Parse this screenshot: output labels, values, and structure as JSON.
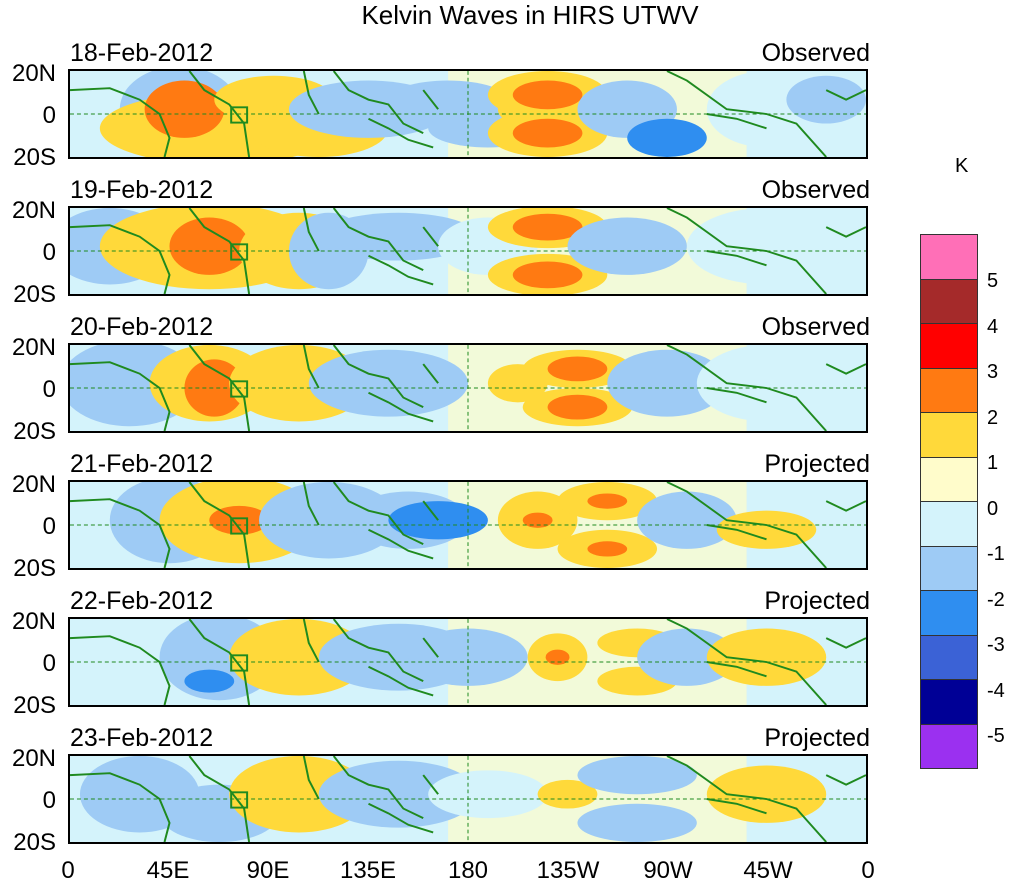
{
  "title": "Kelvin Waves in HIRS UTWV",
  "lat_labels": {
    "north": "20N",
    "center": "0",
    "south": "20S"
  },
  "panels": [
    {
      "date": "18-Feb-2012",
      "status": "Observed"
    },
    {
      "date": "19-Feb-2012",
      "status": "Observed"
    },
    {
      "date": "20-Feb-2012",
      "status": "Observed"
    },
    {
      "date": "21-Feb-2012",
      "status": "Projected"
    },
    {
      "date": "22-Feb-2012",
      "status": "Projected"
    },
    {
      "date": "23-Feb-2012",
      "status": "Projected"
    }
  ],
  "x_labels": [
    "0",
    "45E",
    "90E",
    "135E",
    "180",
    "135W",
    "90W",
    "45W",
    "0"
  ],
  "colorbar": {
    "unit": "K",
    "labels": [
      "5",
      "4",
      "3",
      "2",
      "1",
      "0",
      "-1",
      "-2",
      "-3",
      "-4",
      "-5"
    ],
    "colors": [
      "#ff6fb7",
      "#a52a2a",
      "#ff0000",
      "#ff7a12",
      "#ffd93a",
      "#fffccb",
      "#d4f3fb",
      "#9ecbf5",
      "#2f8ef0",
      "#3b62d6",
      "#000096",
      "#9b30f0"
    ]
  },
  "map_colors": {
    "coast": "#1f8a1f",
    "base": "#fffccb",
    "grid": "#1f8a1f"
  }
}
